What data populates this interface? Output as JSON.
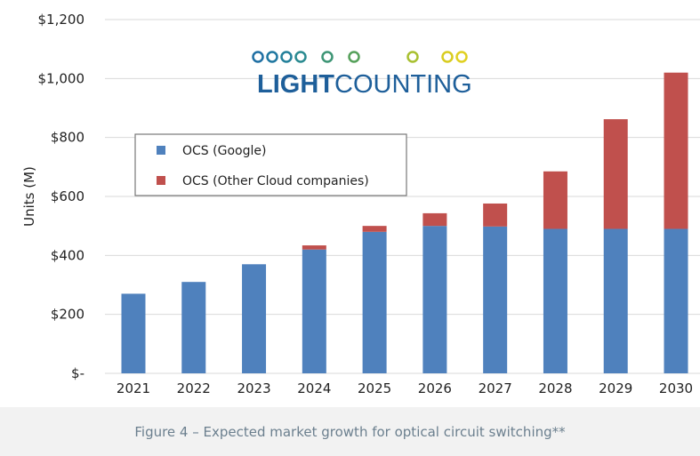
{
  "chart_data": {
    "type": "bar",
    "stacked": true,
    "title": "",
    "xlabel": "",
    "ylabel": "Units (M)",
    "ylim": [
      0,
      1200
    ],
    "yticks": [
      0,
      200,
      400,
      600,
      800,
      1000,
      1200
    ],
    "ytick_labels": [
      "$-",
      "$200",
      "$400",
      "$600",
      "$800",
      "$1,000",
      "$1,200"
    ],
    "grid": true,
    "legend_position": "top-left",
    "categories": [
      "2021",
      "2022",
      "2023",
      "2024",
      "2025",
      "2026",
      "2027",
      "2028",
      "2029",
      "2030"
    ],
    "series": [
      {
        "name": "OCS (Google)",
        "color": "#4f81bd",
        "values": [
          270,
          310,
          370,
          420,
          480,
          500,
          498,
          490,
          490,
          490
        ]
      },
      {
        "name": "OCS (Other Cloud companies)",
        "color": "#c0504d",
        "values": [
          0,
          0,
          0,
          14,
          20,
          43,
          78,
          195,
          372,
          530
        ]
      }
    ]
  },
  "logo": {
    "text_bold": "LIGHT",
    "text_light": "COUNTING"
  },
  "caption": "Figure 4 – Expected market growth for optical circuit switching**"
}
